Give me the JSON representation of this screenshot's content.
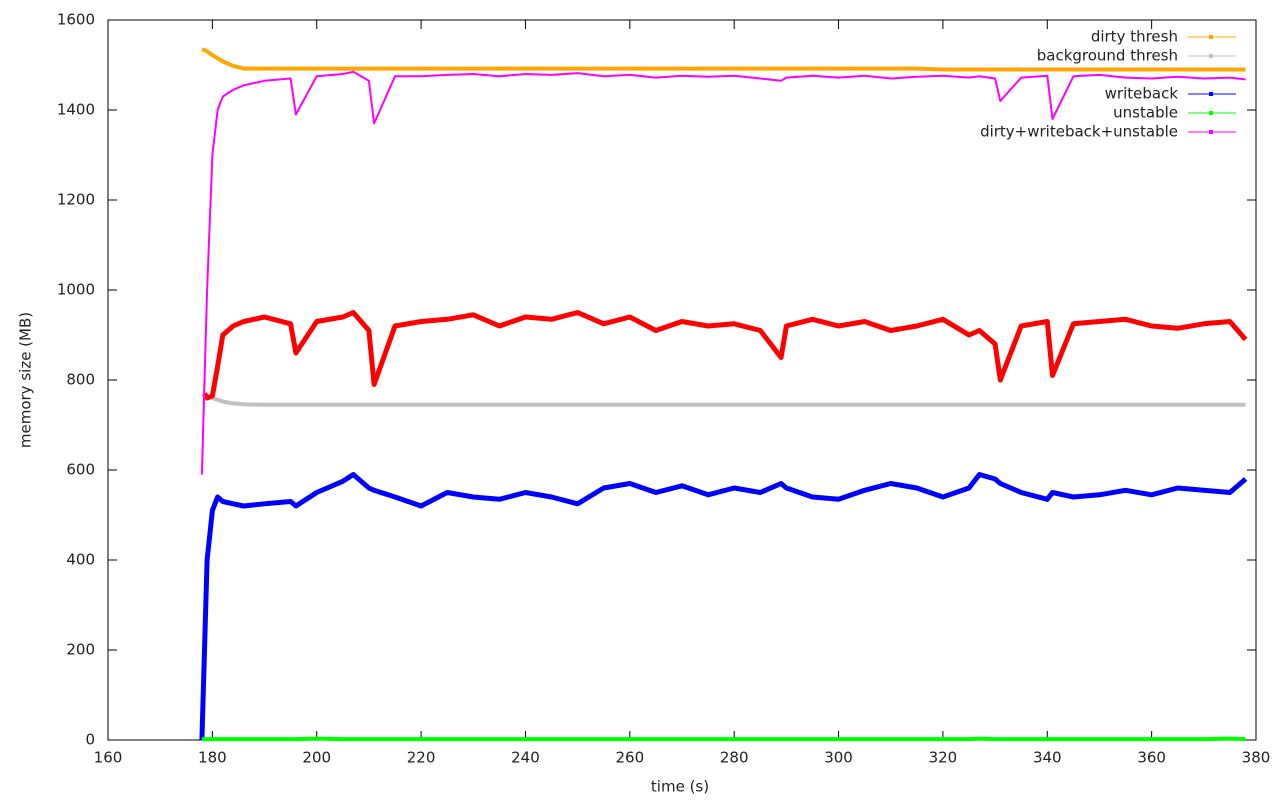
{
  "chart_data": {
    "type": "line",
    "x_label": "time (s)",
    "y_label": "memory size (MB)",
    "xlim": [
      160,
      380
    ],
    "xticks": [
      160,
      180,
      200,
      220,
      240,
      260,
      280,
      300,
      320,
      340,
      360,
      380
    ],
    "ylim": [
      0,
      1600
    ],
    "yticks": [
      0,
      200,
      400,
      600,
      800,
      1000,
      1200,
      1400,
      1600
    ],
    "legend": "top-right",
    "x": [
      178,
      178.5,
      179,
      180,
      181,
      182,
      184,
      186,
      190,
      195,
      196,
      200,
      205,
      207,
      210,
      211,
      215,
      220,
      225,
      230,
      235,
      240,
      245,
      250,
      255,
      260,
      265,
      270,
      275,
      280,
      285,
      289,
      290,
      295,
      300,
      305,
      310,
      315,
      320,
      325,
      327,
      330,
      331,
      335,
      340,
      341,
      345,
      350,
      355,
      360,
      365,
      370,
      375,
      378
    ],
    "series": [
      {
        "name": "dirty thresh",
        "color": "#ffa500",
        "values": [
          1535,
          1533,
          1530,
          1522,
          1515,
          1508,
          1498,
          1492,
          1492,
          1492,
          1492,
          1492,
          1492,
          1492,
          1492,
          1492,
          1492,
          1492,
          1492,
          1492,
          1492,
          1492,
          1492,
          1492,
          1492,
          1492,
          1492,
          1492,
          1492,
          1492,
          1492,
          1492,
          1492,
          1492,
          1492,
          1492,
          1492,
          1492,
          1490,
          1490,
          1490,
          1490,
          1490,
          1490,
          1490,
          1490,
          1490,
          1490,
          1490,
          1490,
          1490,
          1490,
          1490,
          1490
        ]
      },
      {
        "name": "background thresh",
        "color": "#c0c0c0",
        "values": [
          768,
          766,
          764,
          760,
          756,
          752,
          748,
          746,
          745,
          745,
          745,
          745,
          745,
          745,
          745,
          745,
          745,
          745,
          745,
          745,
          745,
          745,
          745,
          745,
          745,
          745,
          745,
          745,
          745,
          745,
          745,
          745,
          745,
          745,
          745,
          745,
          745,
          745,
          745,
          745,
          745,
          745,
          745,
          745,
          745,
          745,
          745,
          745,
          745,
          745,
          745,
          745,
          745,
          745
        ]
      },
      {
        "color": "#ff0000",
        "values": [
          null,
          770,
          760,
          765,
          830,
          900,
          920,
          930,
          940,
          925,
          860,
          930,
          940,
          950,
          910,
          790,
          920,
          930,
          935,
          945,
          920,
          940,
          935,
          950,
          925,
          940,
          910,
          930,
          920,
          925,
          910,
          850,
          920,
          935,
          920,
          930,
          910,
          920,
          935,
          900,
          910,
          880,
          800,
          920,
          930,
          810,
          925,
          930,
          935,
          920,
          915,
          925,
          930,
          890
        ]
      },
      {
        "name": "writeback",
        "color": "#0000ff",
        "values": [
          0,
          200,
          400,
          510,
          540,
          530,
          525,
          520,
          525,
          530,
          520,
          550,
          575,
          590,
          560,
          555,
          540,
          520,
          550,
          540,
          535,
          550,
          540,
          525,
          560,
          570,
          550,
          565,
          545,
          560,
          550,
          570,
          560,
          540,
          535,
          555,
          570,
          560,
          540,
          560,
          590,
          580,
          570,
          550,
          535,
          550,
          540,
          545,
          555,
          545,
          560,
          555,
          550,
          580
        ]
      },
      {
        "name": "unstable",
        "color": "#00ff00",
        "values": [
          2,
          2,
          2,
          2,
          2,
          2,
          2,
          2,
          2,
          2,
          2,
          3,
          2,
          2,
          2,
          2,
          2,
          2,
          2,
          2,
          2,
          2,
          2,
          2,
          2,
          2,
          2,
          2,
          2,
          2,
          2,
          2,
          2,
          2,
          2,
          2,
          2,
          2,
          2,
          2,
          3,
          2,
          2,
          2,
          2,
          2,
          2,
          2,
          2,
          2,
          2,
          2,
          3,
          2
        ]
      },
      {
        "name": "dirty+writeback+unstable",
        "color": "#ff00ff",
        "values": [
          590,
          800,
          1000,
          1300,
          1400,
          1430,
          1445,
          1455,
          1465,
          1470,
          1390,
          1475,
          1480,
          1485,
          1465,
          1370,
          1475,
          1475,
          1478,
          1480,
          1475,
          1480,
          1478,
          1482,
          1475,
          1478,
          1472,
          1476,
          1474,
          1476,
          1470,
          1465,
          1472,
          1476,
          1472,
          1476,
          1470,
          1474,
          1476,
          1472,
          1475,
          1470,
          1420,
          1472,
          1476,
          1380,
          1475,
          1478,
          1472,
          1470,
          1474,
          1470,
          1472,
          1468
        ]
      }
    ]
  }
}
